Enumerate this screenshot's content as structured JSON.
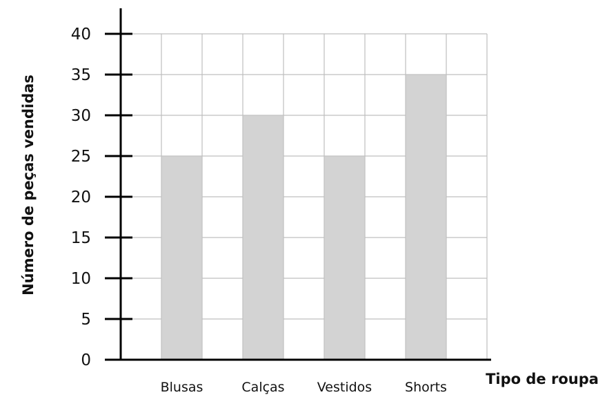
{
  "chart_data": {
    "type": "bar",
    "title": "",
    "xlabel": "Tipo de roupa",
    "ylabel": "Número de peças vendidas",
    "categories": [
      "Blusas",
      "Calças",
      "Vestidos",
      "Shorts"
    ],
    "values": [
      25,
      30,
      25,
      35
    ],
    "ylim": [
      0,
      40
    ],
    "yticks": [
      "0",
      "5",
      "10",
      "15",
      "20",
      "25",
      "30",
      "35",
      "40"
    ],
    "grid": true,
    "legend": "none"
  },
  "colors": {
    "bar_fill": "#d3d3d3",
    "grid": "#bfbfbf",
    "axis": "#000000"
  }
}
